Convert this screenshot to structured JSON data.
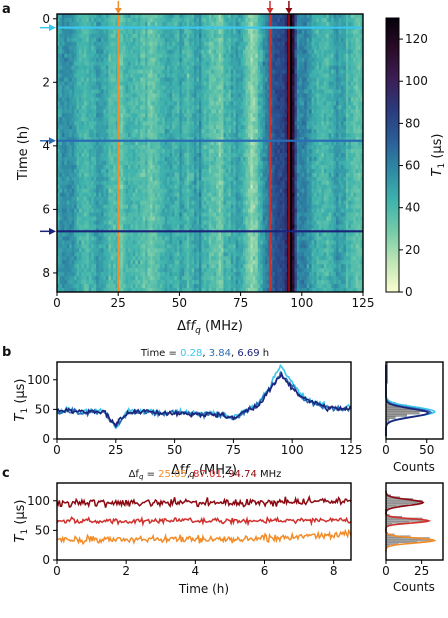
{
  "panels": {
    "a": {
      "label": "a"
    },
    "b": {
      "label": "b",
      "title_prefix": "Time = ",
      "title_unit": " h",
      "title_values": [
        {
          "text": "0.28",
          "color": "#3cc6ee"
        },
        {
          "text": "3.84",
          "color": "#2a6db5"
        },
        {
          "text": "6.69",
          "color": "#1c237a"
        }
      ]
    },
    "c": {
      "label": "c",
      "title_prefix": "Δf",
      "title_sub": "q",
      "title_eq": " = ",
      "title_unit": " MHz",
      "title_values": [
        {
          "text": "25.05",
          "color": "#f28c28"
        },
        {
          "text": "87.01",
          "color": "#d0312d"
        },
        {
          "text": "94.74",
          "color": "#8b0a12"
        }
      ]
    }
  },
  "colors": {
    "c1": "#3cc6ee",
    "c2": "#2a6db5",
    "c3": "#1c237a",
    "f1": "#f28c28",
    "f2": "#d0312d",
    "f3": "#8b0a12"
  },
  "chart_data": [
    {
      "id": "a",
      "type": "heatmap",
      "xlabel": "Δf",
      "xlabel_sub": "q",
      "xlabel_unit": " (MHz)",
      "ylabel": "Time (h)",
      "xlim": [
        0,
        125
      ],
      "ylim": [
        8.6,
        -0.15
      ],
      "xticks": [
        "0",
        "25",
        "50",
        "75",
        "100",
        "125"
      ],
      "yticks": [
        "0",
        "2",
        "4",
        "6",
        "8"
      ],
      "colorbar": {
        "label": "T",
        "label_sub": "1",
        "label_unit": " (µs)",
        "range": [
          0,
          130
        ],
        "ticks": [
          "0",
          "20",
          "40",
          "60",
          "80",
          "100",
          "120"
        ],
        "colormap": [
          "#fafdcf",
          "#bfe5b5",
          "#74cba8",
          "#3fb3ad",
          "#2f8aa4",
          "#2b5c98",
          "#2b3a7c",
          "#3c1d55",
          "#2a0b28",
          "#05000a"
        ]
      },
      "vertical_lines": [
        {
          "x": 25.05,
          "color": "#f28c28"
        },
        {
          "x": 87.01,
          "color": "#d0312d"
        },
        {
          "x": 94.74,
          "color": "#8b0a12"
        }
      ],
      "horizontal_lines": [
        {
          "y": 0.28,
          "color": "#3cc6ee"
        },
        {
          "y": 3.84,
          "color": "#2a6db5"
        },
        {
          "y": 6.69,
          "color": "#1c237a"
        }
      ]
    },
    {
      "id": "b",
      "type": "line",
      "xlabel": "Δf",
      "xlabel_sub": "q",
      "xlabel_unit": " (MHz)",
      "ylabel": "T",
      "ylabel_sub": "1",
      "ylabel_unit": " (µs)",
      "xlim": [
        0,
        125
      ],
      "ylim": [
        0,
        130
      ],
      "xticks": [
        "0",
        "25",
        "50",
        "75",
        "100",
        "125"
      ],
      "yticks": [
        "0",
        "50",
        "100"
      ],
      "x": [
        0,
        5,
        10,
        15,
        20,
        25,
        30,
        35,
        40,
        45,
        50,
        55,
        60,
        65,
        70,
        75,
        80,
        85,
        90,
        95,
        100,
        105,
        110,
        115,
        120,
        125
      ],
      "series": [
        {
          "values": [
            48,
            50,
            46,
            48,
            47,
            18,
            45,
            48,
            47,
            44,
            46,
            45,
            43,
            44,
            42,
            36,
            48,
            58,
            85,
            125,
            95,
            70,
            62,
            55,
            52,
            55
          ]
        },
        {
          "values": [
            45,
            47,
            44,
            46,
            44,
            22,
            43,
            46,
            44,
            43,
            45,
            44,
            42,
            43,
            40,
            34,
            46,
            56,
            82,
            110,
            90,
            66,
            58,
            54,
            50,
            52
          ]
        },
        {
          "values": [
            46,
            48,
            45,
            47,
            45,
            24,
            44,
            46,
            45,
            42,
            44,
            43,
            41,
            42,
            40,
            35,
            47,
            55,
            80,
            108,
            86,
            68,
            60,
            52,
            51,
            53
          ]
        }
      ],
      "histogram": {
        "xlabel": "Counts",
        "xticks": [
          "0",
          "50"
        ],
        "xlim": [
          0,
          70
        ]
      }
    },
    {
      "id": "c",
      "type": "line",
      "xlabel": "Time (h)",
      "ylabel": "T",
      "ylabel_sub": "1",
      "ylabel_unit": " (µs)",
      "xlim": [
        0,
        8.5
      ],
      "ylim": [
        0,
        130
      ],
      "xticks": [
        "0",
        "2",
        "4",
        "6",
        "8"
      ],
      "yticks": [
        "0",
        "50",
        "100"
      ],
      "series": [
        {
          "mean": 35,
          "spread": 7,
          "end": 45
        },
        {
          "mean": 66,
          "spread": 6,
          "end": 68
        },
        {
          "mean": 97,
          "spread": 8,
          "end": 100
        }
      ],
      "histogram": {
        "xlabel": "Counts",
        "xticks": [
          "0",
          "25"
        ],
        "xlim": [
          0,
          40
        ]
      }
    }
  ]
}
